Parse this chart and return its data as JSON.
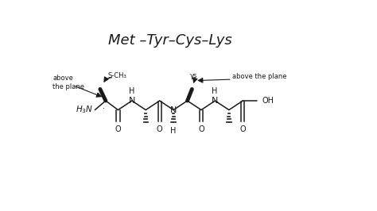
{
  "bg_color": "#ffffff",
  "ink_color": "#1a1a1a",
  "title": "Met –Tyr–Cys–Lys",
  "title_fs": 13,
  "struct_fs": 7,
  "annot_fs": 6,
  "xlim": [
    0,
    9.48
  ],
  "ylim": [
    0,
    5.32
  ],
  "figw": 4.74,
  "figh": 2.66,
  "dpi": 100
}
